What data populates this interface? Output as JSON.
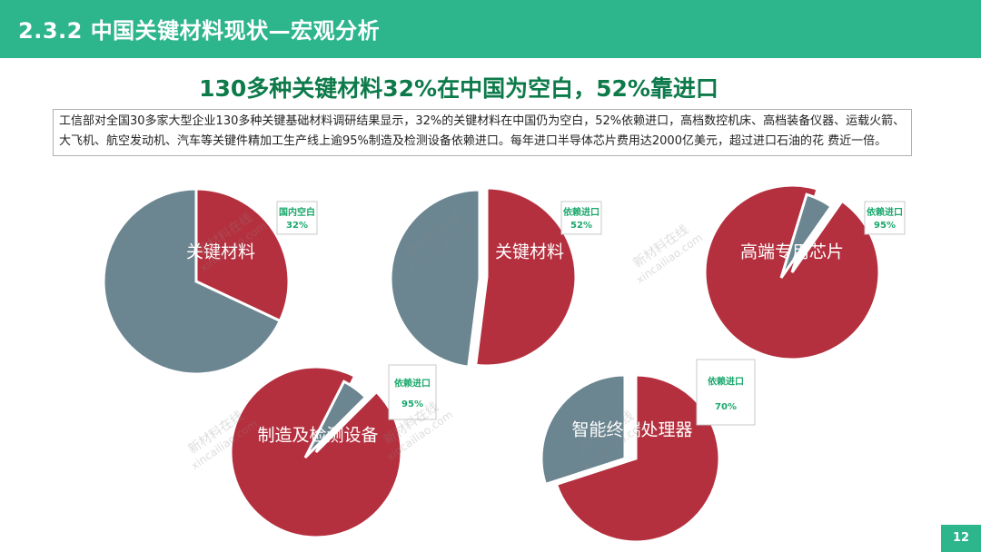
{
  "header": {
    "title": "2.3.2 中国关键材料现状—宏观分析"
  },
  "slide_title": "130多种关键材料32%在中国为空白，52%靠进口",
  "description": "工信部对全国30多家大型企业130多种关键基础材料调研结果显示，32%的关键材料在中国仍为空白，52%依赖进口，高档数控机床、高档装备仪器、运载火箭、大飞机、航空发动机、汽车等关键件精加工生产线上逾95%制造及检测设备依赖进口。每年进口半导体芯片费用达2000亿美元，超过进口石油的花 费近一倍。",
  "watermark": {
    "cn": "新材料在线",
    "en": "xincailiao.com"
  },
  "page_number": "12",
  "colors": {
    "header": "#2db58c",
    "title": "#0d7a4a",
    "highlight": "#b5303f",
    "rest": "#6b8691",
    "callout_text": "#1aa86c"
  },
  "chart_data": [
    {
      "type": "pie",
      "label": "关键材料",
      "callout": "国内空白",
      "callout_value": "32%",
      "values": [
        32,
        68
      ],
      "exploded": 0
    },
    {
      "type": "pie",
      "label": "关键材料",
      "callout": "依赖进口",
      "callout_value": "52%",
      "values": [
        52,
        48
      ],
      "exploded": 1
    },
    {
      "type": "pie",
      "label": "高端专用芯片",
      "callout": "依赖进口",
      "callout_value": "95%",
      "values": [
        95,
        5
      ],
      "exploded": 1
    },
    {
      "type": "pie",
      "label": "制造及检测设备",
      "callout": "依赖进口",
      "callout_value": "95%",
      "values": [
        95,
        5
      ],
      "exploded": 1
    },
    {
      "type": "pie",
      "label": "智能终端处理器",
      "callout": "依赖进口",
      "callout_value": "70%",
      "values": [
        70,
        30
      ],
      "exploded": 1
    }
  ]
}
